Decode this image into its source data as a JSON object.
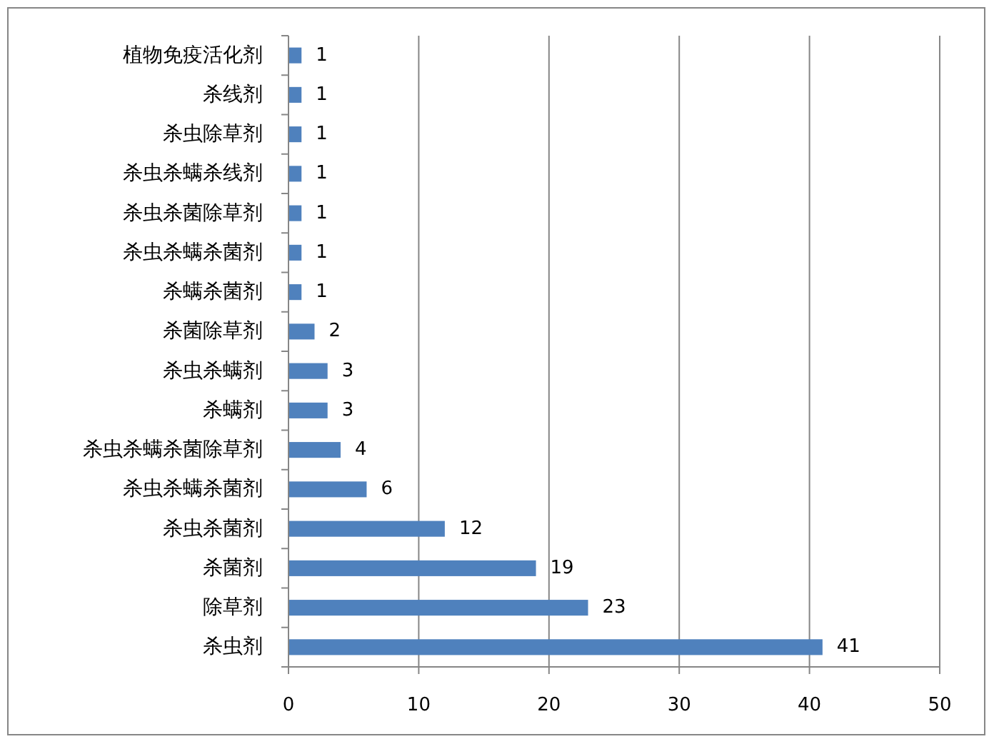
{
  "chart_data": {
    "type": "bar",
    "orientation": "horizontal",
    "categories": [
      "植物免疫活化剂",
      "杀线剂",
      "杀虫除草剂",
      "杀虫杀螨杀线剂",
      "杀虫杀菌除草剂",
      "杀虫杀螨杀菌剂",
      "杀螨杀菌剂",
      "杀菌除草剂",
      "杀虫杀螨剂",
      "杀螨剂",
      "杀虫杀螨杀菌除草剂",
      "杀虫杀螨杀菌剂",
      "杀虫杀菌剂",
      "杀菌剂",
      "除草剂",
      "杀虫剂"
    ],
    "values": [
      1,
      1,
      1,
      1,
      1,
      1,
      1,
      2,
      3,
      3,
      4,
      6,
      12,
      19,
      23,
      41
    ],
    "color": "#4f81bd",
    "xlim": [
      0,
      50
    ],
    "xticks": [
      0,
      10,
      20,
      30,
      40,
      50
    ],
    "grid": "x",
    "data_labels": true
  }
}
